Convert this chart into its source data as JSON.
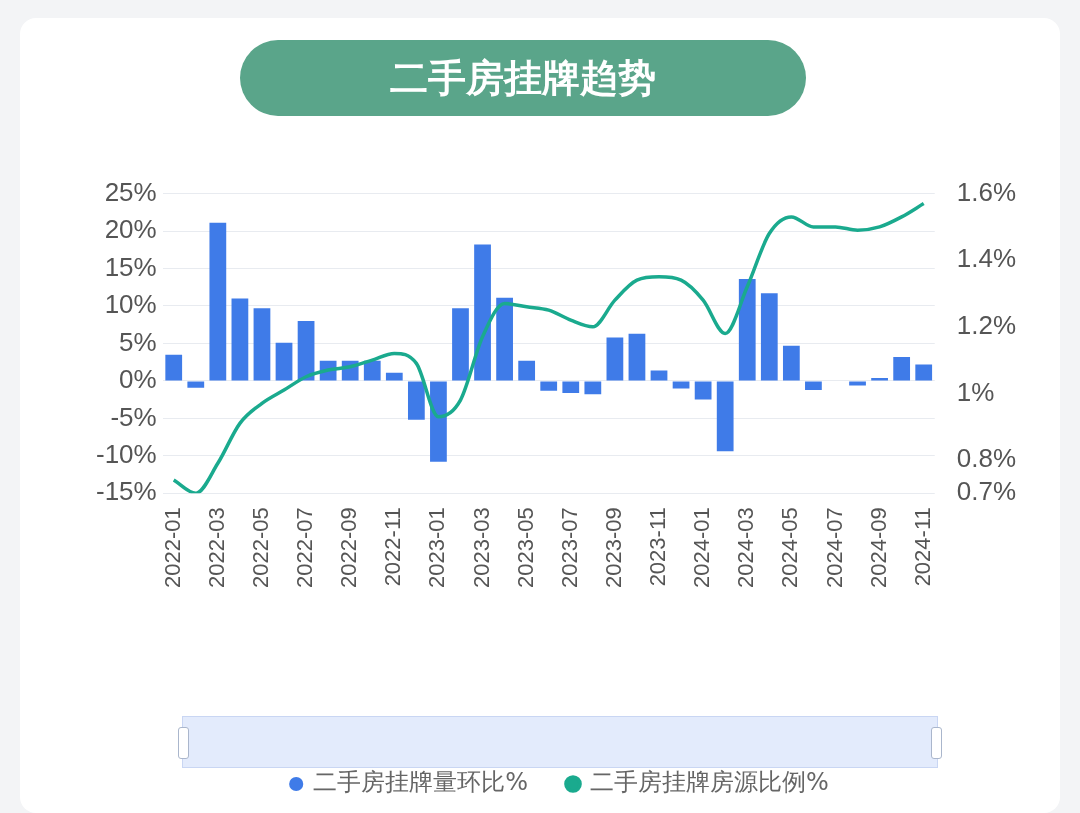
{
  "chart_data": {
    "type": "bar",
    "title": "二手房挂牌趋势",
    "categories": [
      "2022-01",
      null,
      "2022-03",
      null,
      "2022-05",
      null,
      "2022-07",
      null,
      "2022-09",
      null,
      "2022-11",
      null,
      "2023-01",
      null,
      "2023-03",
      null,
      "2023-05",
      null,
      "2023-07",
      null,
      "2023-09",
      null,
      "2023-11",
      null,
      "2024-01",
      null,
      "2024-03",
      null,
      "2024-05",
      null,
      "2024-07",
      null,
      "2024-09",
      null,
      "2024-11"
    ],
    "series": [
      {
        "name": "二手房挂牌量环比%",
        "color": "#3f7be8",
        "values": [
          3.5,
          -0.9,
          21.1,
          11.0,
          9.7,
          5.1,
          8.0,
          2.7,
          2.7,
          2.7,
          1.1,
          -5.2,
          -10.8,
          9.7,
          18.2,
          11.1,
          2.7,
          -1.3,
          -1.6,
          -1.8,
          5.8,
          6.3,
          1.4,
          -1.0,
          -2.5,
          -9.4,
          13.6,
          11.7,
          4.7,
          -1.2,
          0,
          -0.6,
          0.4,
          3.2,
          2.2
        ]
      },
      {
        "name": "二手房挂牌房源比例%",
        "type": "line",
        "axis": "y2",
        "color": "#1aaa8e",
        "values": [
          0.74,
          0.7,
          0.79,
          0.91,
          0.97,
          1.01,
          1.05,
          1.07,
          1.08,
          1.1,
          1.12,
          1.09,
          0.93,
          0.98,
          1.17,
          1.27,
          1.26,
          1.25,
          1.22,
          1.2,
          1.28,
          1.34,
          1.35,
          1.34,
          1.28,
          1.18,
          1.32,
          1.48,
          1.53,
          1.5,
          1.5,
          1.49,
          1.5,
          1.53,
          1.57
        ]
      }
    ],
    "ylim": [
      -15,
      25
    ],
    "yticks": [
      {
        "value": -15,
        "label": "-15%"
      },
      {
        "value": -10,
        "label": "-10%"
      },
      {
        "value": -5,
        "label": "-5%"
      },
      {
        "value": 0,
        "label": "0%"
      },
      {
        "value": 5,
        "label": "5%"
      },
      {
        "value": 10,
        "label": "10%"
      },
      {
        "value": 15,
        "label": "15%"
      },
      {
        "value": 20,
        "label": "20%"
      },
      {
        "value": 25,
        "label": "25%"
      }
    ],
    "y2lim": [
      0.7,
      1.6
    ],
    "y2ticks": [
      {
        "value": 0.7,
        "label": "0.7%"
      },
      {
        "value": 0.8,
        "label": "0.8%"
      },
      {
        "value": 1,
        "label": "1%"
      },
      {
        "value": 1.2,
        "label": "1.2%"
      },
      {
        "value": 1.4,
        "label": "1.4%"
      },
      {
        "value": 1.6,
        "label": "1.6%"
      }
    ],
    "grid": "y",
    "legend": "bottom",
    "marker": "none"
  }
}
